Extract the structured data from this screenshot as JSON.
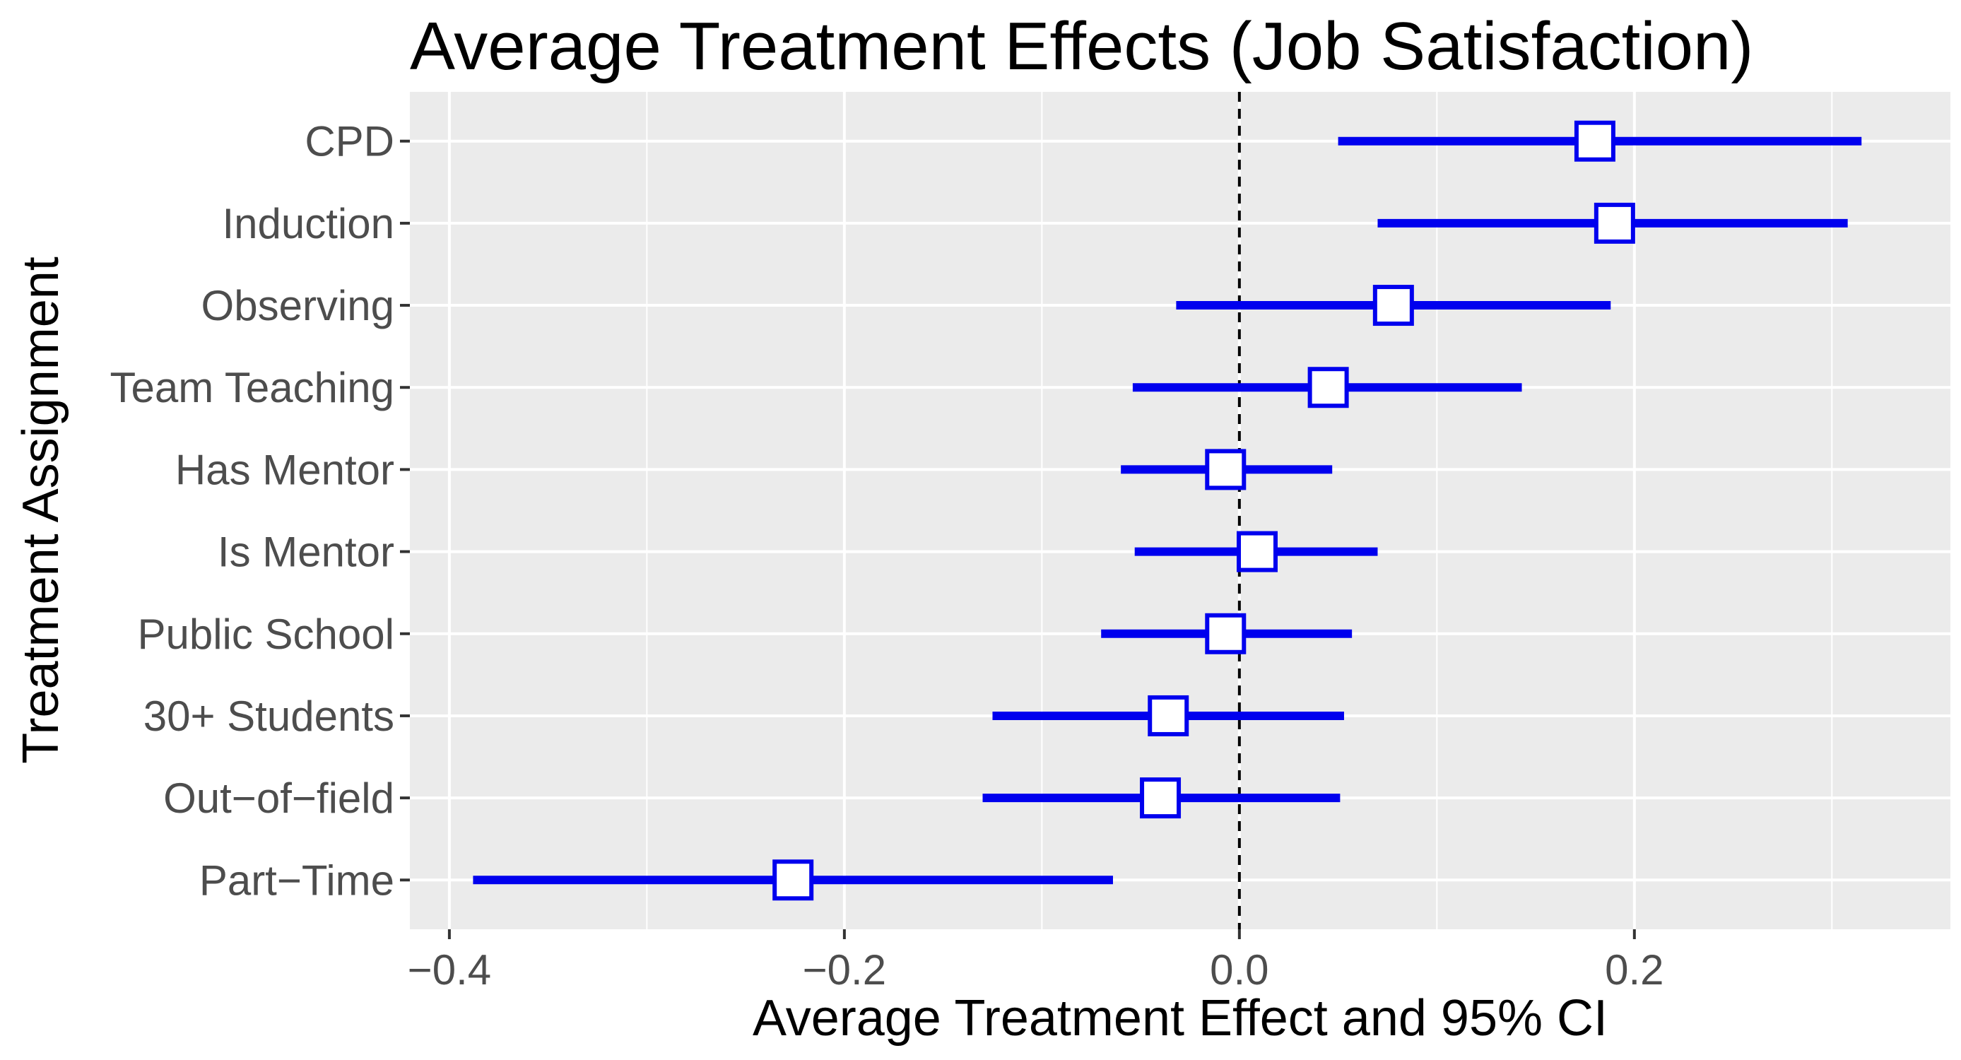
{
  "chart_data": {
    "type": "forest",
    "title": "Average Treatment Effects (Job Satisfaction)",
    "xlabel": "Average Treatment Effect and 95% CI",
    "ylabel": "Treatment Assignment",
    "xlim": [
      -0.42,
      0.36
    ],
    "x_ticks": [
      {
        "value": -0.4,
        "label": "−0.4"
      },
      {
        "value": -0.2,
        "label": "−0.2"
      },
      {
        "value": 0.0,
        "label": "0.0"
      },
      {
        "value": 0.2,
        "label": "0.2"
      }
    ],
    "reference_line": 0.0,
    "grid": true,
    "panel_background": "#ebebeb",
    "grid_color": "#ffffff",
    "series_color": "#0000ee",
    "marker_fill": "#ffffff",
    "categories": [
      "CPD",
      "Induction",
      "Observing",
      "Team Teaching",
      "Has Mentor",
      "Is Mentor",
      "Public School",
      "30+ Students",
      "Out−of−field",
      "Part−Time"
    ],
    "points": [
      {
        "label": "CPD",
        "estimate": 0.18,
        "ci_low": 0.05,
        "ci_high": 0.315
      },
      {
        "label": "Induction",
        "estimate": 0.19,
        "ci_low": 0.07,
        "ci_high": 0.308
      },
      {
        "label": "Observing",
        "estimate": 0.078,
        "ci_low": -0.032,
        "ci_high": 0.188
      },
      {
        "label": "Team Teaching",
        "estimate": 0.045,
        "ci_low": -0.054,
        "ci_high": 0.143
      },
      {
        "label": "Has Mentor",
        "estimate": -0.007,
        "ci_low": -0.06,
        "ci_high": 0.047
      },
      {
        "label": "Is Mentor",
        "estimate": 0.009,
        "ci_low": -0.053,
        "ci_high": 0.07
      },
      {
        "label": "Public School",
        "estimate": -0.007,
        "ci_low": -0.07,
        "ci_high": 0.057
      },
      {
        "label": "30+ Students",
        "estimate": -0.036,
        "ci_low": -0.125,
        "ci_high": 0.053
      },
      {
        "label": "Out−of−field",
        "estimate": -0.04,
        "ci_low": -0.13,
        "ci_high": 0.051
      },
      {
        "label": "Part−Time",
        "estimate": -0.226,
        "ci_low": -0.388,
        "ci_high": -0.064
      }
    ]
  }
}
